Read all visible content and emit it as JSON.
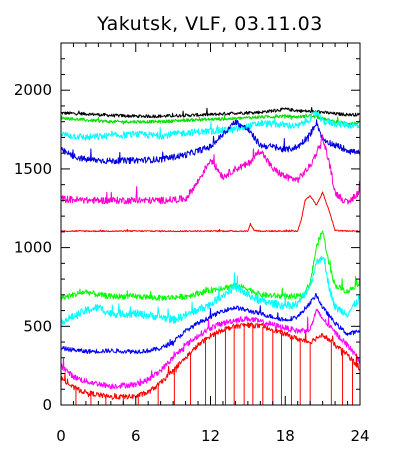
{
  "chart_data": {
    "type": "line",
    "title": "Yakutsk, VLF, 03.11.03",
    "xlabel": "",
    "ylabel": "",
    "xlim": [
      0,
      24
    ],
    "ylim": [
      0,
      2300
    ],
    "x_ticks": [
      0,
      6,
      12,
      18,
      24
    ],
    "x_tick_labels": [
      "0",
      "6",
      "12",
      "18",
      "24"
    ],
    "y_ticks": [
      0,
      500,
      1000,
      1500,
      2000
    ],
    "y_tick_labels": [
      "0",
      "500",
      "1000",
      "1500",
      "2000"
    ],
    "grid": false,
    "legend": "none",
    "series": [
      {
        "color": "#000000",
        "noise": 10,
        "x": [
          0,
          2,
          4,
          6,
          8,
          10,
          12,
          14,
          16,
          17,
          18,
          19,
          20,
          21,
          22,
          23,
          24
        ],
        "y": [
          1855,
          1850,
          1840,
          1835,
          1835,
          1840,
          1845,
          1855,
          1860,
          1870,
          1880,
          1870,
          1865,
          1860,
          1850,
          1845,
          1845
        ]
      },
      {
        "color": "#00dd00",
        "noise": 10,
        "x": [
          0,
          2,
          4,
          6,
          8,
          10,
          12,
          14,
          16,
          18,
          19,
          20,
          21,
          22,
          23,
          24
        ],
        "y": [
          1825,
          1810,
          1800,
          1800,
          1800,
          1810,
          1815,
          1820,
          1830,
          1835,
          1830,
          1840,
          1820,
          1800,
          1790,
          1790
        ]
      },
      {
        "color": "#00ffff",
        "noise": 22,
        "x": [
          0,
          2,
          4,
          6,
          8,
          10,
          12,
          14,
          16,
          18,
          19,
          20,
          20.5,
          21,
          22,
          23,
          24
        ],
        "y": [
          1720,
          1700,
          1710,
          1720,
          1710,
          1730,
          1740,
          1750,
          1790,
          1780,
          1770,
          1820,
          1860,
          1800,
          1790,
          1780,
          1770
        ]
      },
      {
        "color": "#0000dd",
        "noise": 20,
        "x": [
          0,
          1,
          2,
          4,
          6,
          8,
          10,
          12,
          13,
          14,
          15,
          16,
          17,
          18,
          19,
          20,
          20.5,
          21,
          22,
          23,
          24
        ],
        "y": [
          1620,
          1580,
          1560,
          1550,
          1555,
          1560,
          1590,
          1640,
          1720,
          1800,
          1750,
          1650,
          1640,
          1620,
          1640,
          1720,
          1800,
          1690,
          1650,
          1620,
          1600
        ]
      },
      {
        "color": "#ff00cc",
        "noise": 22,
        "x": [
          0,
          2,
          4,
          6,
          8,
          10,
          11,
          12,
          13,
          14,
          15,
          16,
          17,
          18,
          19,
          20,
          20.5,
          21,
          21.5,
          22,
          23,
          24
        ],
        "y": [
          1310,
          1300,
          1300,
          1300,
          1300,
          1310,
          1420,
          1560,
          1450,
          1500,
          1530,
          1620,
          1500,
          1450,
          1430,
          1520,
          1600,
          1700,
          1550,
          1350,
          1280,
          1360
        ]
      },
      {
        "color": "#ff0000",
        "noise": 4,
        "x": [
          0,
          2,
          4,
          6,
          8,
          10,
          12,
          14,
          15,
          15.2,
          15.5,
          16,
          18,
          19,
          19.3,
          19.6,
          20,
          20.5,
          21,
          21.5,
          22,
          23,
          24
        ],
        "y": [
          1105,
          1105,
          1105,
          1105,
          1105,
          1105,
          1105,
          1105,
          1105,
          1150,
          1110,
          1105,
          1105,
          1105,
          1180,
          1300,
          1330,
          1270,
          1350,
          1240,
          1110,
          1105,
          1105
        ]
      },
      {
        "color": "#00ff00",
        "noise": 18,
        "x": [
          0,
          1,
          2,
          3,
          4,
          6,
          8,
          10,
          12,
          14,
          15,
          16,
          18,
          19,
          19.5,
          20,
          20.5,
          21,
          21.5,
          22,
          23,
          24
        ],
        "y": [
          680,
          700,
          720,
          700,
          690,
          690,
          680,
          690,
          730,
          760,
          740,
          700,
          690,
          690,
          700,
          780,
          1000,
          1110,
          900,
          760,
          720,
          780
        ]
      },
      {
        "color": "#00ffff",
        "noise": 25,
        "x": [
          0,
          1,
          2,
          3,
          4,
          6,
          8,
          9,
          10,
          12,
          13,
          14,
          15,
          16,
          18,
          19,
          20,
          20.5,
          21,
          21.5,
          22,
          23,
          24
        ],
        "y": [
          530,
          560,
          600,
          620,
          580,
          580,
          560,
          540,
          570,
          640,
          700,
          750,
          700,
          660,
          630,
          640,
          760,
          900,
          950,
          760,
          620,
          580,
          680
        ]
      },
      {
        "color": "#0000ff",
        "noise": 14,
        "x": [
          0,
          2,
          4,
          6,
          7,
          8,
          9,
          10,
          11,
          12,
          13,
          14,
          15,
          16,
          17,
          18,
          19,
          20,
          20.5,
          21,
          22,
          23,
          24
        ],
        "y": [
          360,
          340,
          345,
          340,
          345,
          360,
          400,
          470,
          520,
          560,
          600,
          620,
          600,
          580,
          560,
          540,
          560,
          650,
          700,
          620,
          520,
          450,
          470
        ]
      },
      {
        "color": "#ff00ff",
        "noise": 18,
        "x": [
          0,
          1,
          2,
          4,
          6,
          7,
          8,
          9,
          10,
          11,
          12,
          13,
          14,
          15,
          16,
          17,
          18,
          19,
          20,
          20.5,
          21,
          22,
          23,
          24
        ],
        "y": [
          250,
          180,
          150,
          120,
          130,
          160,
          220,
          300,
          380,
          440,
          490,
          520,
          540,
          550,
          530,
          510,
          490,
          470,
          480,
          600,
          550,
          460,
          380,
          280
        ]
      },
      {
        "color": "#ff0000",
        "noise": 16,
        "x": [
          0,
          1,
          2,
          4,
          6,
          7,
          8,
          9,
          10,
          11,
          12,
          13,
          14,
          15,
          16,
          17,
          18,
          19,
          20,
          21,
          22,
          23,
          24
        ],
        "y": [
          170,
          110,
          80,
          50,
          55,
          80,
          140,
          220,
          300,
          380,
          440,
          480,
          500,
          510,
          500,
          480,
          450,
          420,
          400,
          450,
          380,
          320,
          230
        ]
      }
    ]
  }
}
